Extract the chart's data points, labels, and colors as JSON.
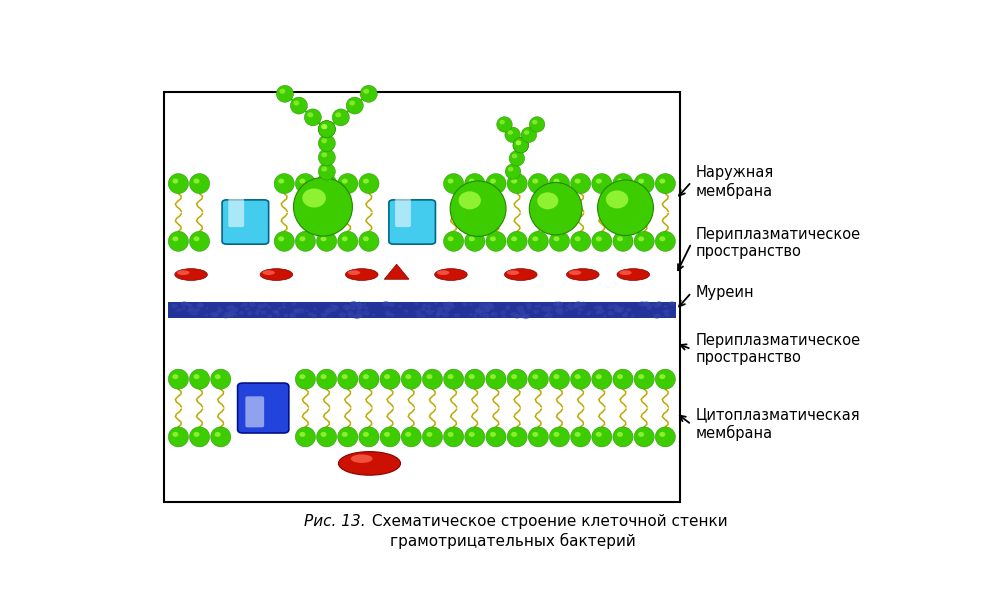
{
  "fig_width": 10.01,
  "fig_height": 6.12,
  "dpi": 100,
  "bg_color": "#ffffff",
  "border_color": "#000000",
  "caption_italic": "Рис. 13.",
  "caption_normal": " Схематическое строение клеточной стенки",
  "caption_line2": "грамотрицательных бактерий",
  "green": "#3ccc00",
  "green_hi": "#aaff44",
  "green_dark": "#228800",
  "tail_color": "#bbaa00",
  "cyan": "#44ccee",
  "cyan_hi": "#aaeeff",
  "blue": "#2244dd",
  "blue_hi": "#8899ff",
  "red": "#cc1100",
  "red_hi": "#ff6655",
  "murein_blue": "#223399",
  "murein_dark": "#111166"
}
